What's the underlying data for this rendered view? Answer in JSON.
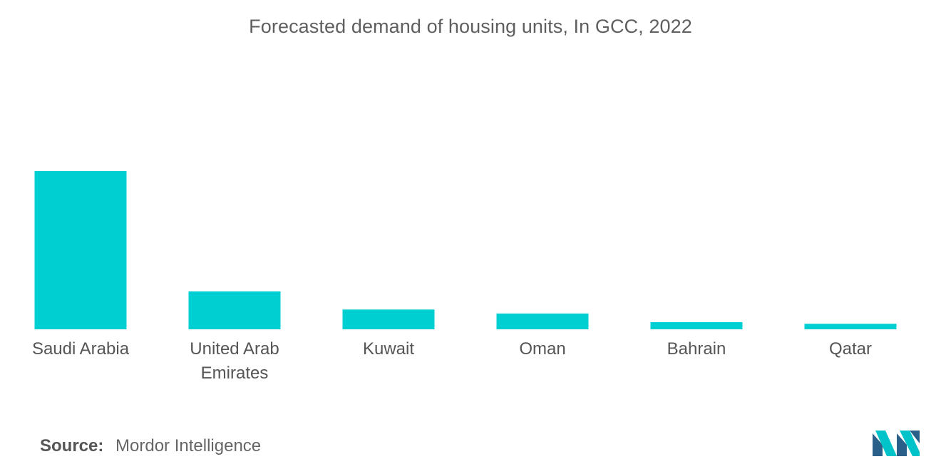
{
  "chart_data": {
    "type": "bar",
    "title": "Forecasted demand of housing units, In GCC, 2022",
    "categories": [
      "Saudi Arabia",
      "United Arab Emirates",
      "Kuwait",
      "Oman",
      "Bahrain",
      "Qatar"
    ],
    "category_lines": [
      [
        "Saudi Arabia"
      ],
      [
        "United Arab",
        "Emirates"
      ],
      [
        "Kuwait"
      ],
      [
        "Oman"
      ],
      [
        "Bahrain"
      ],
      [
        "Qatar"
      ]
    ],
    "values": [
      100,
      24,
      12.5,
      10,
      4.5,
      3.5
    ],
    "ylim": [
      0,
      100
    ],
    "xlabel": "",
    "ylabel": "",
    "grid": false,
    "bar_color": "#00cfd2"
  },
  "source": {
    "label": "Source:",
    "text": "Mordor Intelligence"
  },
  "brand_colors": [
    "#2a5f8a",
    "#00c2c9"
  ]
}
